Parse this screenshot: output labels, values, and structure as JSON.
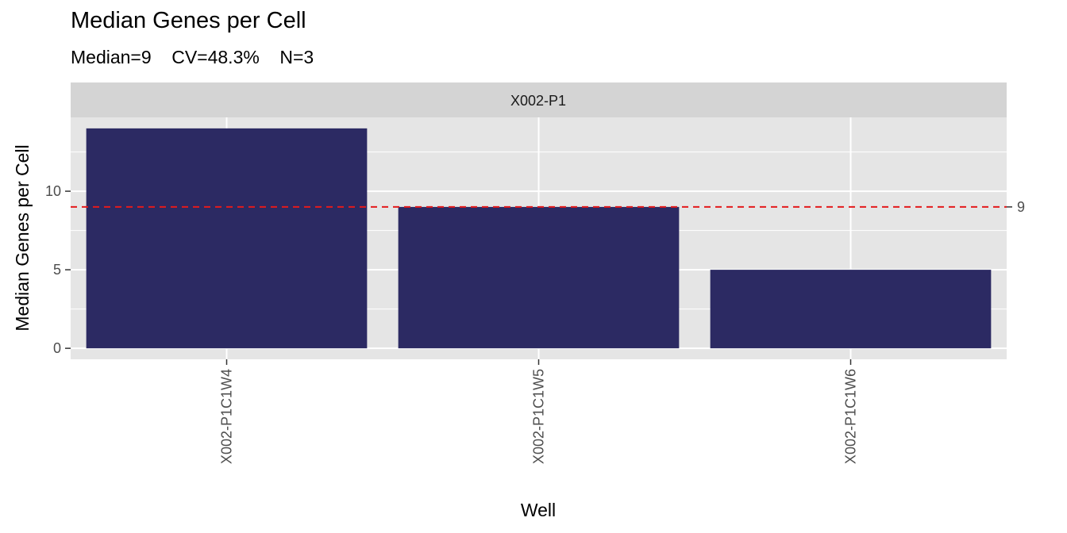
{
  "chart_data": {
    "type": "bar",
    "title": "Median Genes per Cell",
    "subtitle": "Median=9    CV=48.3%    N=3",
    "facet": "X002-P1",
    "categories": [
      "X002-P1C1W4",
      "X002-P1C1W5",
      "X002-P1C1W6"
    ],
    "values": [
      14,
      9,
      5
    ],
    "xlabel": "Well",
    "ylabel": "Median Genes per Cell",
    "ylim": [
      -0.7,
      14.7
    ],
    "yticks": [
      0,
      5,
      10
    ],
    "reference_line": {
      "value": 9,
      "label": "9",
      "style": "dashed",
      "color": "#e41a1c"
    },
    "bar_color": "#2c2a63",
    "panel_background": "#e5e5e5",
    "strip_background": "#d4d4d4",
    "grid": true,
    "legend": "none"
  }
}
